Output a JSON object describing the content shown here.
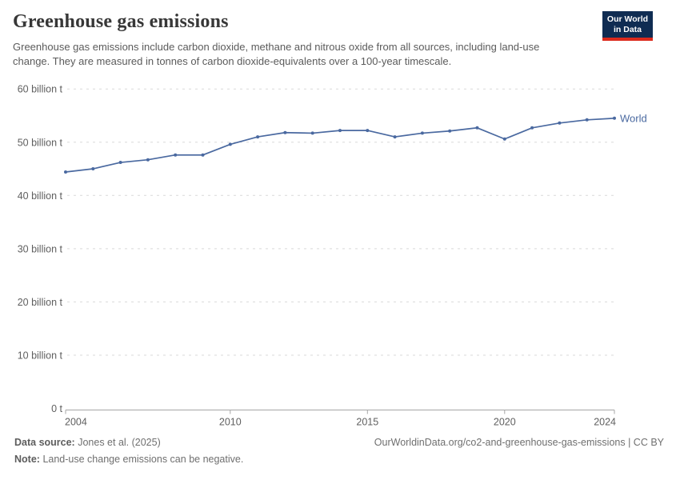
{
  "header": {
    "title": "Greenhouse gas emissions",
    "subtitle": "Greenhouse gas emissions include carbon dioxide, methane and nitrous oxide from all sources, including land-use change. They are measured in tonnes of carbon dioxide-equivalents over a 100-year timescale.",
    "logo": {
      "line1": "Our World",
      "line2": "in Data",
      "bg_color": "#0f2c52",
      "stripe_color": "#dc2a1c"
    }
  },
  "chart_data": {
    "type": "line",
    "title": "Greenhouse gas emissions",
    "xlabel": "",
    "ylabel": "",
    "unit": "billion tonnes of CO2-equivalents",
    "xlim": [
      2004,
      2024
    ],
    "ylim": [
      0,
      60
    ],
    "grid": "horizontal dashed",
    "legend_position": "end-of-line label",
    "x": [
      2004,
      2005,
      2006,
      2007,
      2008,
      2009,
      2010,
      2011,
      2012,
      2013,
      2014,
      2015,
      2016,
      2017,
      2018,
      2019,
      2020,
      2021,
      2022,
      2023,
      2024
    ],
    "series": [
      {
        "name": "World",
        "color": "#4a69a0",
        "values": [
          44.4,
          45.0,
          46.2,
          46.7,
          47.6,
          47.6,
          49.6,
          51.0,
          51.8,
          51.7,
          52.2,
          52.2,
          51.0,
          51.7,
          52.1,
          52.7,
          50.6,
          52.7,
          53.6,
          54.2,
          54.5
        ]
      }
    ],
    "x_ticks": [
      2004,
      2010,
      2015,
      2020,
      2024
    ],
    "y_ticks": [
      0,
      10,
      20,
      30,
      40,
      50,
      60
    ],
    "y_tick_labels": [
      "0 t",
      "10 billion t",
      "20 billion t",
      "30 billion t",
      "40 billion t",
      "50 billion t",
      "60 billion t"
    ],
    "end_label": "World",
    "colors": {
      "grid": "#d9d9d9",
      "axis": "#a6a6a6",
      "tick_label": "#5f5f5f"
    }
  },
  "footer": {
    "source_label": "Data source:",
    "source_value": "Jones et al. (2025)",
    "attribution": "OurWorldinData.org/co2-and-greenhouse-gas-emissions | CC BY",
    "note_label": "Note:",
    "note_value": "Land-use change emissions can be negative."
  }
}
